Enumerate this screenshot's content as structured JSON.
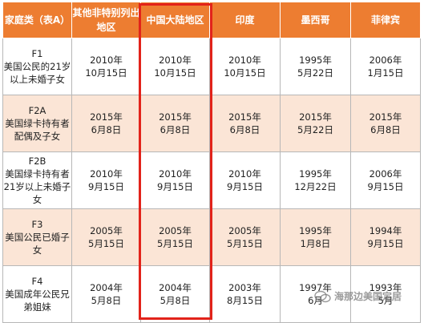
{
  "table": {
    "headers": [
      "家庭类（表A）",
      "其他非特别列出地区",
      "中国大陆地区",
      "印度",
      "墨西哥",
      "菲律宾"
    ],
    "rows": [
      {
        "code": "F1",
        "desc": "美国公民的21岁以上未婚子女",
        "cells": [
          [
            "2010年",
            "10月15日"
          ],
          [
            "2010年",
            "10月15日"
          ],
          [
            "2010年",
            "10月15日"
          ],
          [
            "1995年",
            "5月22日"
          ],
          [
            "2006年",
            "1月15日"
          ]
        ]
      },
      {
        "code": "F2A",
        "desc": "美国绿卡持有者配偶及子女",
        "cells": [
          [
            "2015年",
            "6月8日"
          ],
          [
            "2015年",
            "6月8日"
          ],
          [
            "2015年",
            "6月8日"
          ],
          [
            "2015年",
            "5月22日"
          ],
          [
            "2015年",
            "6月8日"
          ]
        ]
      },
      {
        "code": "F2B",
        "desc": "美国绿卡持有者21岁以上未婚子女",
        "cells": [
          [
            "2010年",
            "9月15日"
          ],
          [
            "2010年",
            "9月15日"
          ],
          [
            "2010年",
            "9月15日"
          ],
          [
            "1995年",
            "12月22日"
          ],
          [
            "2006年",
            "9月15日"
          ]
        ]
      },
      {
        "code": "F3",
        "desc": "美国公民已婚子女",
        "cells": [
          [
            "2005年",
            "5月15日"
          ],
          [
            "2005年",
            "5月15日"
          ],
          [
            "2005年",
            "5月15日"
          ],
          [
            "1995年",
            "1月8日"
          ],
          [
            "1994年",
            "9月15日"
          ]
        ]
      },
      {
        "code": "F4",
        "desc": "美国成年公民兄弟姐妹",
        "cells": [
          [
            "2004年",
            "5月8日"
          ],
          [
            "2004年",
            "5月8日"
          ],
          [
            "2003年",
            "8月15日"
          ],
          [
            "1997年",
            "6月"
          ],
          [
            "1993年",
            "5月"
          ]
        ]
      }
    ]
  },
  "watermark": {
    "text": "海那边美国定居",
    "icon": "wechat-icon"
  },
  "colors": {
    "header_bg": "#ed7d31",
    "band_bg": "#fbe5d6",
    "highlight": "#e2231a"
  }
}
